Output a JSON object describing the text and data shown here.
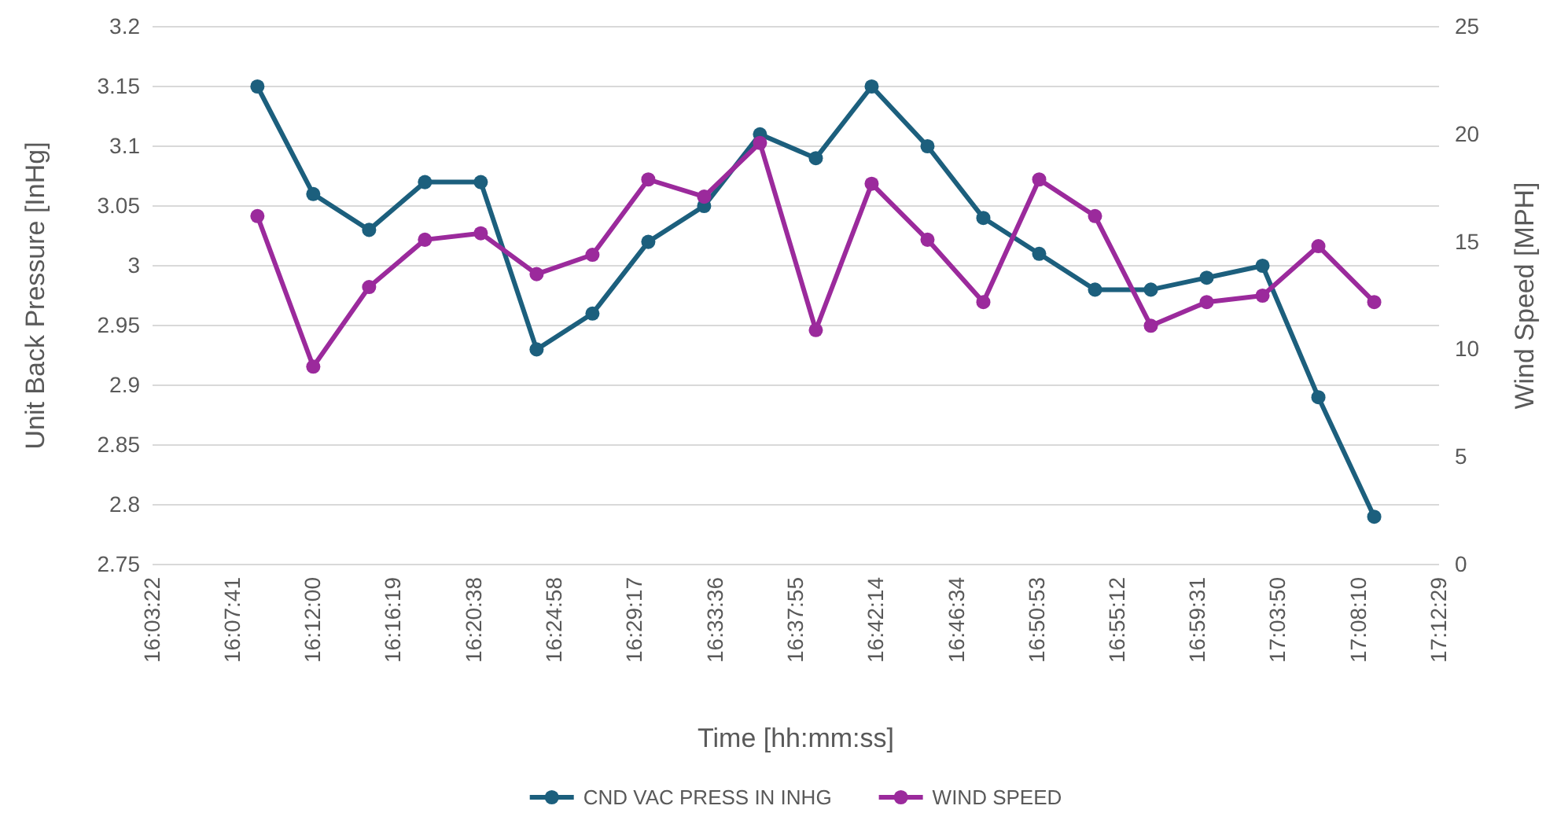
{
  "chart_data": {
    "type": "line",
    "xlabel": "Time [hh:mm:ss]",
    "ylabel": "Unit Back Pressure [InHg]",
    "y2label": "Wind Speed [MPH]",
    "x": [
      16.15,
      16.2,
      16.25,
      16.3,
      16.35,
      16.4,
      16.45,
      16.5,
      16.55,
      16.6,
      16.65,
      16.7,
      16.75,
      16.8,
      16.85,
      16.9,
      16.95,
      17.0,
      17.05,
      17.1,
      17.15
    ],
    "series": [
      {
        "name": "CND VAC PRESS IN INHG",
        "color": "#1c5f7d",
        "values": [
          3.15,
          3.06,
          3.03,
          3.07,
          3.07,
          2.93,
          2.96,
          3.02,
          3.05,
          3.11,
          3.09,
          3.15,
          3.1,
          3.04,
          3.01,
          2.98,
          2.98,
          2.99,
          3.0,
          2.89,
          2.79
        ]
      },
      {
        "name": "WIND SPEED",
        "color": "#9b2a9c",
        "axis": "y2",
        "values": [
          16.2,
          9.2,
          12.9,
          15.1,
          15.4,
          13.5,
          14.4,
          17.9,
          17.1,
          19.6,
          10.9,
          17.7,
          15.1,
          12.2,
          17.9,
          16.2,
          11.1,
          12.2,
          12.5,
          14.8,
          12.2
        ]
      }
    ],
    "xlim": [
      16.05611,
      17.20806
    ],
    "xticks": [
      {
        "value": 16.05611,
        "label": "16:03:22"
      },
      {
        "value": 16.12806,
        "label": "16:07:41"
      },
      {
        "value": 16.2,
        "label": "16:12:00"
      },
      {
        "value": 16.27194,
        "label": "16:16:19"
      },
      {
        "value": 16.34389,
        "label": "16:20:38"
      },
      {
        "value": 16.41611,
        "label": "16:24:58"
      },
      {
        "value": 16.48806,
        "label": "16:29:17"
      },
      {
        "value": 16.56,
        "label": "16:33:36"
      },
      {
        "value": 16.63194,
        "label": "16:37:55"
      },
      {
        "value": 16.70389,
        "label": "16:42:14"
      },
      {
        "value": 16.77611,
        "label": "16:46:34"
      },
      {
        "value": 16.84806,
        "label": "16:50:53"
      },
      {
        "value": 16.92,
        "label": "16:55:12"
      },
      {
        "value": 16.99194,
        "label": "16:59:31"
      },
      {
        "value": 17.06389,
        "label": "17:03:50"
      },
      {
        "value": 17.13611,
        "label": "17:08:10"
      },
      {
        "value": 17.20806,
        "label": "17:12:29"
      }
    ],
    "ylim": [
      2.75,
      3.2
    ],
    "yticks": [
      {
        "value": 2.75,
        "label": "2.75"
      },
      {
        "value": 2.8,
        "label": "2.8"
      },
      {
        "value": 2.85,
        "label": "2.85"
      },
      {
        "value": 2.9,
        "label": "2.9"
      },
      {
        "value": 2.95,
        "label": "2.95"
      },
      {
        "value": 3.0,
        "label": "3"
      },
      {
        "value": 3.05,
        "label": "3.05"
      },
      {
        "value": 3.1,
        "label": "3.1"
      },
      {
        "value": 3.15,
        "label": "3.15"
      },
      {
        "value": 3.2,
        "label": "3.2"
      }
    ],
    "y2lim": [
      0,
      25
    ],
    "y2ticks": [
      0,
      5,
      10,
      15,
      20,
      25
    ],
    "grid": "y",
    "legend": "bottom",
    "marker": "circle",
    "line_style": "solid"
  }
}
